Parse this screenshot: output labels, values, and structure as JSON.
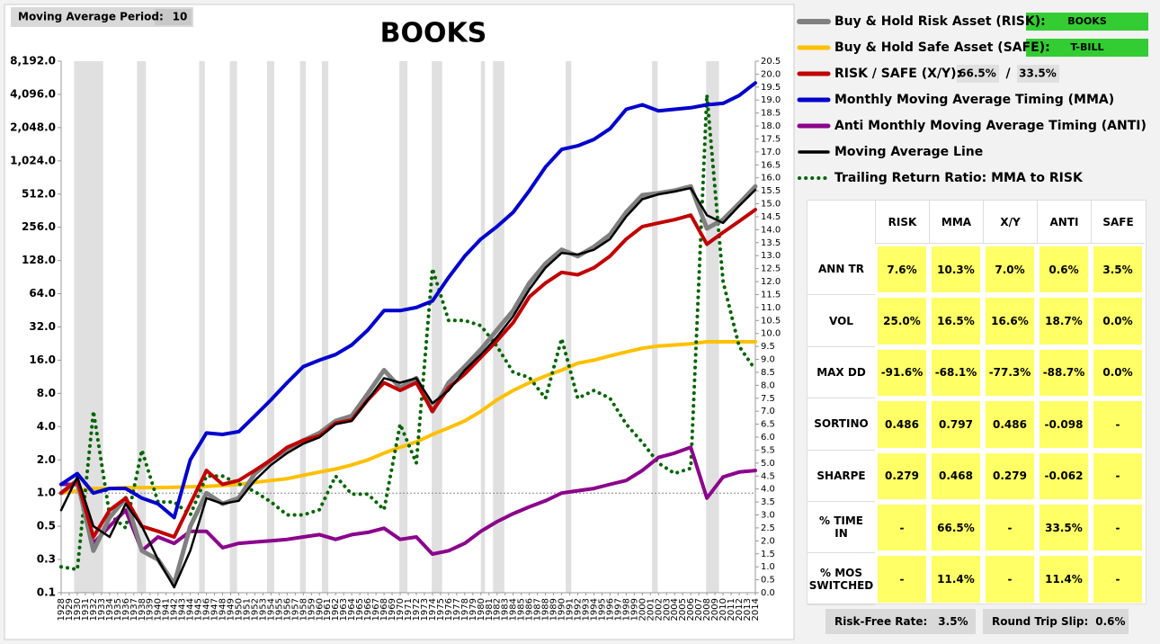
{
  "settings": {
    "period_label": "Moving Average Period:",
    "period_value": "10"
  },
  "chart_data": {
    "type": "line",
    "title": "BOOKS",
    "x": [
      1928,
      1930,
      1932,
      1934,
      1936,
      1938,
      1940,
      1942,
      1944,
      1946,
      1948,
      1950,
      1952,
      1954,
      1956,
      1958,
      1960,
      1962,
      1964,
      1966,
      1968,
      1970,
      1972,
      1974,
      1976,
      1978,
      1980,
      1982,
      1984,
      1986,
      1988,
      1990,
      1992,
      1994,
      1996,
      1998,
      2000,
      2002,
      2004,
      2006,
      2008,
      2010,
      2012,
      2014
    ],
    "xlim": [
      1928,
      2014
    ],
    "xticks": [
      1928,
      1929,
      1930,
      1931,
      1932,
      1933,
      1934,
      1935,
      1936,
      1937,
      1938,
      1939,
      1940,
      1941,
      1942,
      1943,
      1944,
      1945,
      1946,
      1947,
      1948,
      1949,
      1950,
      1951,
      1952,
      1953,
      1954,
      1955,
      1956,
      1957,
      1958,
      1959,
      1960,
      1961,
      1962,
      1963,
      1964,
      1965,
      1966,
      1967,
      1968,
      1969,
      1970,
      1971,
      1972,
      1973,
      1974,
      1975,
      1976,
      1977,
      1978,
      1979,
      1980,
      1981,
      1982,
      1983,
      1984,
      1985,
      1986,
      1987,
      1988,
      1989,
      1990,
      1991,
      1992,
      1993,
      1994,
      1995,
      1996,
      1997,
      1998,
      1999,
      2000,
      2001,
      2002,
      2003,
      2004,
      2005,
      2006,
      2007,
      2008,
      2009,
      2010,
      2011,
      2012,
      2013,
      2014
    ],
    "log_scale": true,
    "ylim": [
      0.125,
      8192
    ],
    "yticks": [
      {
        "value": 0.125,
        "label": "0.1"
      },
      {
        "value": 0.25,
        "label": "0.3"
      },
      0.5,
      {
        "value": 1,
        "label": "1.0"
      },
      {
        "value": 2,
        "label": "2.0"
      },
      {
        "value": 4,
        "label": "4.0"
      },
      {
        "value": 8,
        "label": "8.0"
      },
      {
        "value": 16,
        "label": "16.0"
      },
      {
        "value": 32,
        "label": "32.0"
      },
      {
        "value": 64,
        "label": "64.0"
      },
      {
        "value": 128,
        "label": "128.0"
      },
      {
        "value": 256,
        "label": "256.0"
      },
      {
        "value": 512,
        "label": "512.0"
      },
      {
        "value": 1024,
        "label": "1,024.0"
      },
      {
        "value": 2048,
        "label": "2,048.0"
      },
      {
        "value": 4096,
        "label": "4,096.0"
      },
      {
        "value": 8192,
        "label": "8,192.0"
      }
    ],
    "y2lim": [
      0,
      20.5
    ],
    "y2ticks": [
      {
        "value": 0,
        "label": "0.0"
      },
      0.5,
      {
        "value": 1,
        "label": "1.0"
      },
      1.5,
      {
        "value": 2,
        "label": "2.0"
      },
      2.5,
      {
        "value": 3,
        "label": "3.0"
      },
      3.5,
      {
        "value": 4,
        "label": "4.0"
      },
      4.5,
      {
        "value": 5,
        "label": "5.0"
      },
      5.5,
      {
        "value": 6,
        "label": "6.0"
      },
      6.5,
      {
        "value": 7,
        "label": "7.0"
      },
      7.5,
      {
        "value": 8,
        "label": "8.0"
      },
      8.5,
      {
        "value": 9,
        "label": "9.0"
      },
      9.5,
      {
        "value": 10,
        "label": "10.0"
      },
      10.5,
      {
        "value": 11,
        "label": "11.0"
      },
      11.5,
      {
        "value": 12,
        "label": "12.0"
      },
      12.5,
      {
        "value": 13,
        "label": "13.0"
      },
      13.5,
      {
        "value": 14,
        "label": "14.0"
      },
      14.5,
      {
        "value": 15,
        "label": "15.0"
      },
      15.5,
      {
        "value": 16,
        "label": "16.0"
      },
      16.5,
      {
        "value": 17,
        "label": "17.0"
      },
      17.5,
      {
        "value": 18,
        "label": "18.0"
      },
      18.5,
      {
        "value": 19,
        "label": "19.0"
      },
      19.5,
      {
        "value": 20,
        "label": "20.0"
      },
      20.5
    ],
    "reference_line": 1,
    "shading": [
      [
        1929.6,
        1933.2
      ],
      [
        1937.4,
        1938.5
      ],
      [
        1945.1,
        1945.8
      ],
      [
        1948.9,
        1949.8
      ],
      [
        1953.5,
        1954.4
      ],
      [
        1957.6,
        1958.3
      ],
      [
        1960.3,
        1961.1
      ],
      [
        1969.9,
        1970.9
      ],
      [
        1973.9,
        1975.2
      ],
      [
        1980.0,
        1980.5
      ],
      [
        1981.5,
        1982.9
      ],
      [
        1990.5,
        1991.2
      ],
      [
        2001.2,
        2001.9
      ],
      [
        2007.9,
        2009.5
      ]
    ],
    "series": [
      {
        "name": "Buy & Hold Risk Asset (RISK):",
        "color": "#808080",
        "width": 5,
        "values": [
          1.0,
          1.3,
          0.3,
          0.6,
          0.9,
          0.3,
          0.25,
          0.15,
          0.5,
          1.0,
          0.8,
          0.9,
          1.5,
          2.0,
          2.5,
          3.0,
          3.5,
          4.5,
          5,
          8,
          13,
          9,
          11,
          5.5,
          10,
          14,
          20,
          30,
          45,
          80,
          120,
          160,
          140,
          170,
          220,
          350,
          500,
          520,
          550,
          600,
          250,
          300,
          420,
          600
        ]
      },
      {
        "name": "Buy & Hold Safe Asset (SAFE):",
        "color": "#ffc000",
        "width": 4,
        "values": [
          1.0,
          1.05,
          1.1,
          1.1,
          1.12,
          1.12,
          1.12,
          1.13,
          1.14,
          1.15,
          1.17,
          1.2,
          1.25,
          1.3,
          1.35,
          1.45,
          1.55,
          1.65,
          1.8,
          2.0,
          2.3,
          2.6,
          2.9,
          3.4,
          3.9,
          4.5,
          5.5,
          7,
          8.5,
          10,
          11.5,
          13,
          15,
          16,
          17.5,
          19,
          20.5,
          21.5,
          22,
          22.5,
          23.5,
          23.5,
          23.5,
          23.5
        ]
      },
      {
        "name": "RISK / SAFE (X/Y):",
        "color": "#c00000",
        "width": 4,
        "values": [
          1.0,
          1.3,
          0.4,
          0.7,
          0.9,
          0.5,
          0.45,
          0.4,
          0.8,
          1.6,
          1.2,
          1.3,
          1.6,
          2.0,
          2.6,
          3.0,
          3.3,
          4.3,
          4.6,
          7,
          10,
          8.5,
          10,
          5.5,
          9,
          12,
          17,
          24,
          35,
          60,
          80,
          100,
          95,
          110,
          140,
          200,
          260,
          280,
          300,
          330,
          180,
          230,
          290,
          370
        ]
      },
      {
        "name": "Monthly Moving Average Timing (MMA)",
        "color": "#0000cc",
        "width": 4,
        "values": [
          1.2,
          1.5,
          1.0,
          1.1,
          1.1,
          0.9,
          0.8,
          0.6,
          2.0,
          3.5,
          3.4,
          3.6,
          5,
          7,
          10,
          14,
          16,
          18,
          22,
          30,
          45,
          45,
          48,
          55,
          90,
          140,
          200,
          260,
          350,
          550,
          900,
          1300,
          1400,
          1600,
          2000,
          3000,
          3300,
          2900,
          3000,
          3100,
          3300,
          3400,
          4000,
          5200
        ]
      },
      {
        "name": "Anti Monthly Moving Average Timing (ANTI)",
        "color": "#8b008b",
        "width": 4,
        "values": [
          1.2,
          1.2,
          0.35,
          0.5,
          0.7,
          0.3,
          0.4,
          0.35,
          0.45,
          0.45,
          0.32,
          0.35,
          0.36,
          0.37,
          0.38,
          0.4,
          0.42,
          0.38,
          0.42,
          0.44,
          0.48,
          0.38,
          0.4,
          0.28,
          0.3,
          0.35,
          0.45,
          0.55,
          0.65,
          0.75,
          0.85,
          1.0,
          1.05,
          1.1,
          1.2,
          1.3,
          1.6,
          2.1,
          2.3,
          2.6,
          0.9,
          1.4,
          1.55,
          1.6
        ]
      },
      {
        "name": "Moving Average Line",
        "color": "#000000",
        "width": 2.5,
        "values": [
          0.7,
          1.4,
          0.5,
          0.4,
          0.8,
          0.5,
          0.25,
          0.14,
          0.3,
          0.9,
          0.8,
          0.85,
          1.3,
          1.8,
          2.3,
          2.8,
          3.2,
          4.2,
          4.5,
          7,
          11,
          10,
          11,
          6.5,
          8.5,
          13,
          18,
          26,
          40,
          70,
          110,
          150,
          145,
          160,
          200,
          320,
          460,
          510,
          540,
          580,
          330,
          280,
          400,
          560
        ]
      },
      {
        "name": "Trailing Return Ratio: MMA to RISK",
        "color": "#006400",
        "width": 4,
        "dotted": true,
        "axis": "y2",
        "values": [
          1.0,
          0.9,
          7.0,
          3.0,
          2.5,
          5.5,
          3.5,
          3.5,
          3.0,
          4.5,
          4.5,
          4.2,
          3.9,
          3.5,
          3.0,
          3.0,
          3.2,
          4.5,
          3.8,
          3.8,
          3.2,
          6.5,
          5.0,
          12.5,
          10.5,
          10.5,
          10.3,
          9.5,
          8.5,
          8.3,
          7.5,
          9.8,
          7.5,
          7.8,
          7.5,
          6.5,
          5.8,
          5.0,
          4.6,
          4.8,
          19.2,
          12.0,
          9.5,
          8.6
        ]
      }
    ]
  },
  "legend_fields": {
    "risk_asset": "BOOKS",
    "safe_asset": "T-BILL",
    "risk_weight": "66.5%",
    "separator": "/",
    "safe_weight": "33.5%"
  },
  "table": {
    "columns": [
      "RISK",
      "MMA",
      "X/Y",
      "ANTI",
      "SAFE"
    ],
    "rows": [
      {
        "label": "ANN TR",
        "cells": [
          "7.6%",
          "10.3%",
          "7.0%",
          "0.6%",
          "3.5%"
        ]
      },
      {
        "label": "VOL",
        "cells": [
          "25.0%",
          "16.5%",
          "16.6%",
          "18.7%",
          "0.0%"
        ]
      },
      {
        "label": "MAX DD",
        "cells": [
          "-91.6%",
          "-68.1%",
          "-77.3%",
          "-88.7%",
          "0.0%"
        ]
      },
      {
        "label": "SORTINO",
        "cells": [
          "0.486",
          "0.797",
          "0.486",
          "-0.098",
          "-"
        ]
      },
      {
        "label": "SHARPE",
        "cells": [
          "0.279",
          "0.468",
          "0.279",
          "-0.062",
          "-"
        ]
      },
      {
        "label": "% TIME IN",
        "cells": [
          "-",
          "66.5%",
          "-",
          "33.5%",
          "-"
        ]
      },
      {
        "label": "% MOS SWITCHED",
        "cells": [
          "-",
          "11.4%",
          "-",
          "11.4%",
          "-"
        ]
      }
    ]
  },
  "footer": {
    "rate_label": "Risk-Free Rate:",
    "rate_value": "3.5%",
    "slip_label": "Round Trip Slip:",
    "slip_value": "0.6%"
  }
}
